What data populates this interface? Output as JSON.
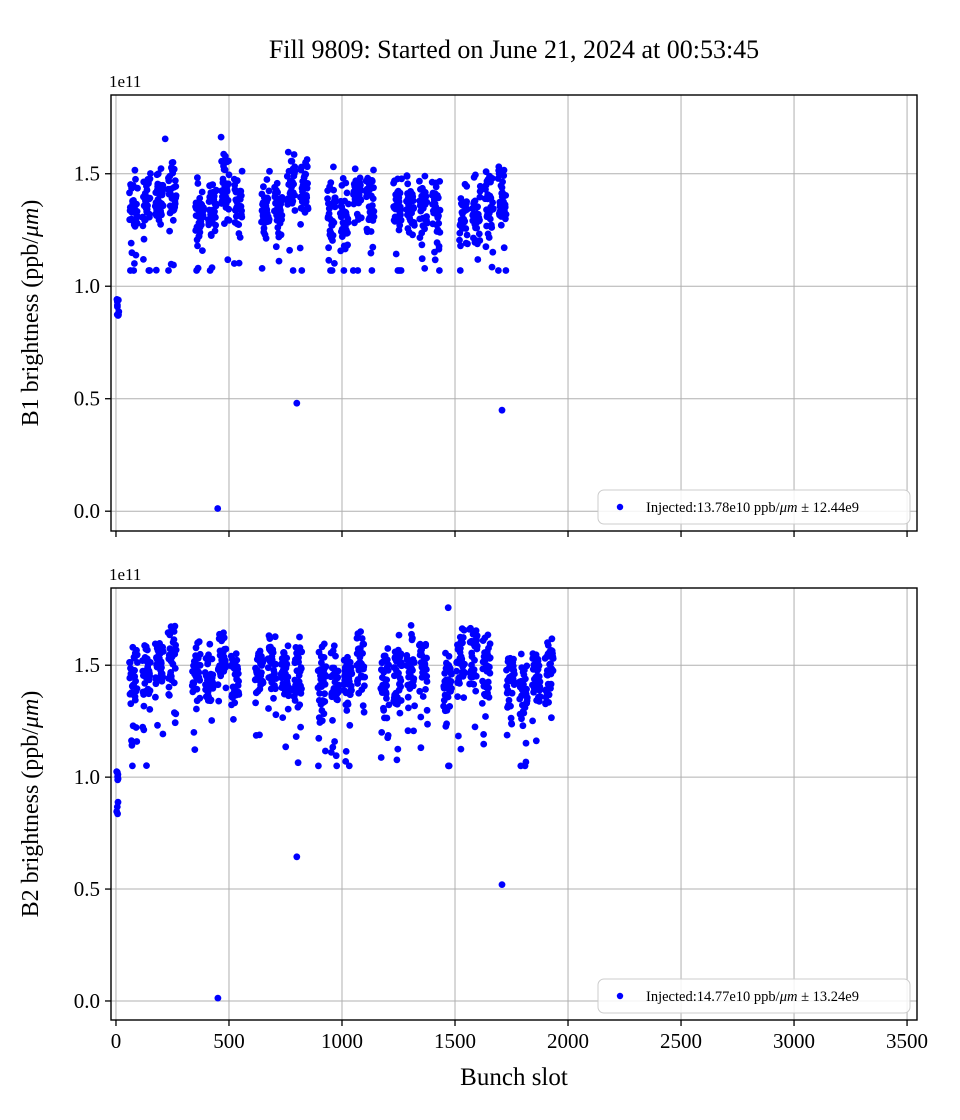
{
  "figure": {
    "title": "Fill 9809: Started on June 21, 2024 at 00:53:45",
    "xlabel": "Bunch slot",
    "background": "#ffffff"
  },
  "chart_data": [
    {
      "type": "scatter",
      "name": "B1-brightness",
      "ylabel_parts": {
        "prefix": "B1 brightness (ppb/",
        "italic": "μm",
        "suffix": ")"
      },
      "offset_label": "1e11",
      "marker_color": "#0000ff",
      "grid_color": "#b0b0b0",
      "axes_rect": [
        111,
        95,
        806,
        436
      ],
      "xlim": [
        -22,
        3544
      ],
      "ylim": [
        -0.088,
        1.85
      ],
      "xticks": [
        0,
        500,
        1000,
        1500,
        2000,
        2500,
        3000,
        3500
      ],
      "yticks": [
        0.0,
        0.5,
        1.0,
        1.5
      ],
      "show_xticklabels": false,
      "legend": {
        "prefix": "Injected:13.78e10 ppb/",
        "italic": "μm",
        "suffix": " ± 12.44e9"
      },
      "mean_1e11": 1.378,
      "std_1e11": 0.1244,
      "probe_cluster": {
        "x_start": 3,
        "n": 9,
        "y_min": 0.85,
        "y_max": 0.97
      },
      "trains": {
        "starts": [
          60,
          117,
          174,
          231,
          352,
          409,
          466,
          523,
          644,
          701,
          758,
          815,
          936,
          993,
          1050,
          1107,
          1228,
          1285,
          1342,
          1399,
          1520,
          1577,
          1634,
          1691
        ],
        "bunches": 36
      },
      "y_band": {
        "base": 1.378,
        "spread": 0.072,
        "clamp": [
          1.07,
          1.665
        ],
        "straggler_chance": 0.1,
        "staircase": 0.02,
        "train_wobble": 0.1
      },
      "outliers": [
        [
          450,
          0.012
        ],
        [
          800,
          0.48
        ],
        [
          1708,
          0.449
        ],
        [
          218,
          1.655
        ],
        [
          465,
          1.663
        ]
      ],
      "seed": 17
    },
    {
      "type": "scatter",
      "name": "B2-brightness",
      "ylabel_parts": {
        "prefix": "B2 brightness (ppb/",
        "italic": "μm",
        "suffix": ")"
      },
      "offset_label": "1e11",
      "marker_color": "#0000ff",
      "grid_color": "#b0b0b0",
      "axes_rect": [
        111,
        588,
        806,
        432
      ],
      "xlim": [
        -22,
        3544
      ],
      "ylim": [
        -0.085,
        1.845
      ],
      "xticks": [
        0,
        500,
        1000,
        1500,
        2000,
        2500,
        3000,
        3500
      ],
      "yticks": [
        0.0,
        0.5,
        1.0,
        1.5
      ],
      "show_xticklabels": true,
      "legend": {
        "prefix": "Injected:14.77e10 ppb/",
        "italic": "μm",
        "suffix": " ± 13.24e9"
      },
      "mean_1e11": 1.477,
      "std_1e11": 0.1324,
      "probe_cluster": {
        "x_start": 3,
        "n": 10,
        "y_min": 0.82,
        "y_max": 1.07
      },
      "trains": {
        "starts": [
          60,
          117,
          174,
          231,
          338,
          395,
          452,
          509,
          616,
          673,
          730,
          787,
          894,
          951,
          1008,
          1065,
          1172,
          1229,
          1286,
          1343,
          1450,
          1507,
          1564,
          1621,
          1728,
          1785,
          1842,
          1899
        ],
        "bunches": 36
      },
      "y_band": {
        "base": 1.477,
        "spread": 0.072,
        "clamp": [
          1.05,
          1.74
        ],
        "straggler_chance": 0.1,
        "staircase": 0.02,
        "train_wobble": 0.1
      },
      "outliers": [
        [
          451,
          0.013
        ],
        [
          800,
          0.644
        ],
        [
          1708,
          0.52
        ],
        [
          1470,
          1.757
        ]
      ],
      "seed": 99
    }
  ]
}
